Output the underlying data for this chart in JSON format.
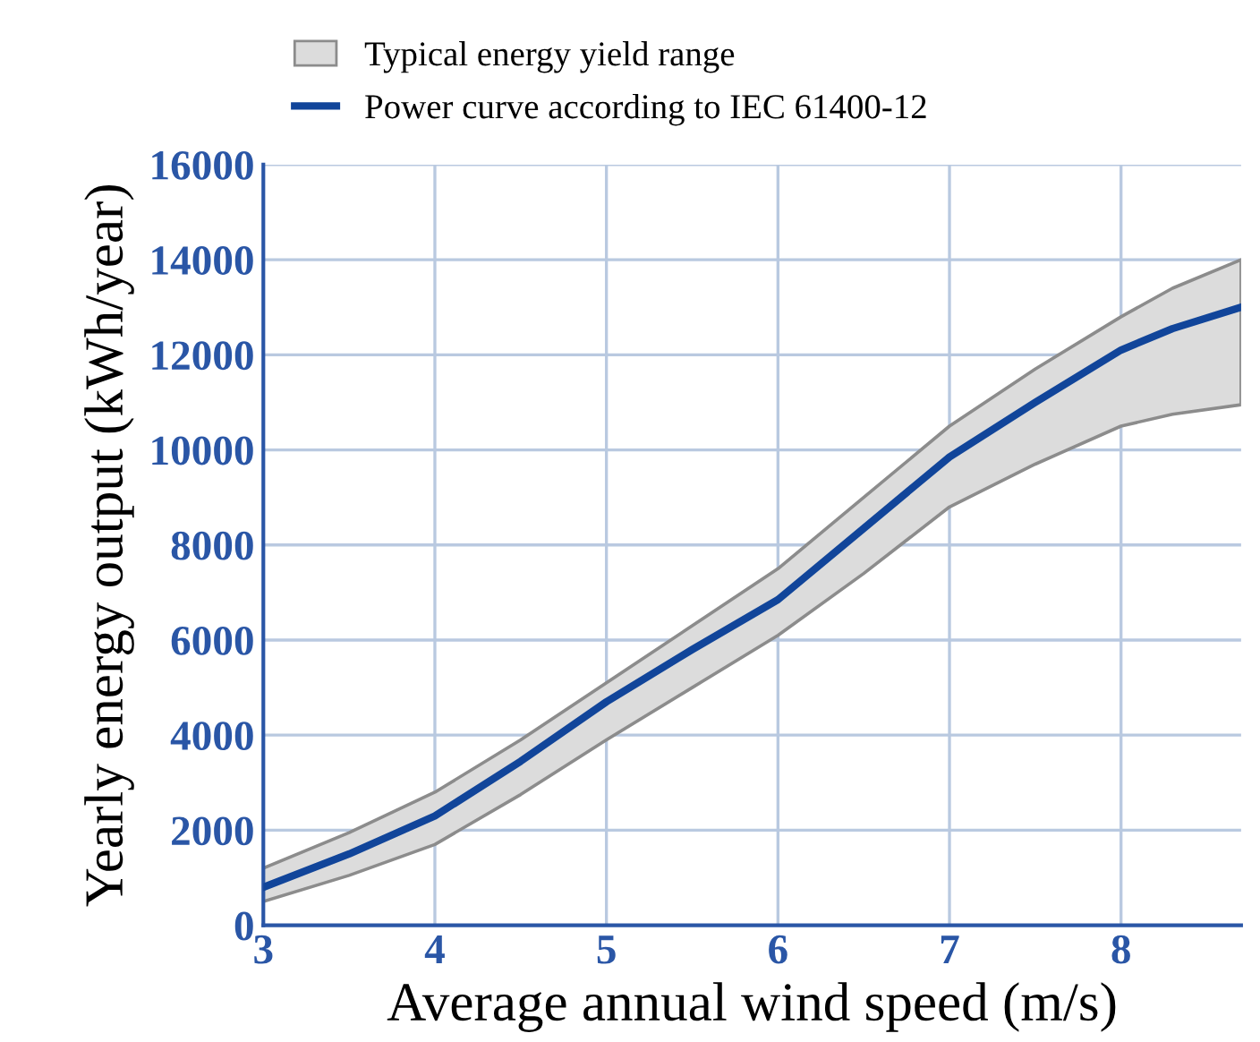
{
  "chart_data": {
    "type": "line",
    "xlabel": "Average annual wind speed (m/s)",
    "ylabel": "Yearly energy output (kWh/year)",
    "x": [
      3,
      3.5,
      4,
      4.5,
      5,
      5.5,
      6,
      6.5,
      7,
      7.5,
      8,
      8.3,
      8.7
    ],
    "series": [
      {
        "name": "Typical energy yield range",
        "type": "area",
        "color": "#dcdcdc",
        "values": [
          null,
          null,
          null,
          null,
          null,
          null,
          null,
          null,
          null,
          null,
          null,
          null,
          null
        ]
      },
      {
        "name": "Power curve according to IEC 61400-12",
        "color": "#11459a",
        "values": [
          800,
          1500,
          2300,
          3450,
          4700,
          5800,
          6850,
          8350,
          9850,
          11000,
          12100,
          12550,
          13000
        ],
        "lower": [
          500,
          1050,
          1700,
          2750,
          3900,
          5000,
          6100,
          7400,
          8800,
          9700,
          10500,
          10750,
          10950
        ],
        "upper": [
          1200,
          1950,
          2800,
          3900,
          5100,
          6300,
          7500,
          9000,
          10500,
          11700,
          12800,
          13400,
          14000
        ]
      }
    ],
    "xlim": [
      3,
      8.7
    ],
    "xticks": [
      3,
      4,
      5,
      6,
      7,
      8
    ],
    "ylim": [
      0,
      16000
    ],
    "yticks": [
      0,
      2000,
      4000,
      6000,
      8000,
      10000,
      12000,
      14000,
      16000
    ],
    "grid": true,
    "legend": "top left"
  }
}
